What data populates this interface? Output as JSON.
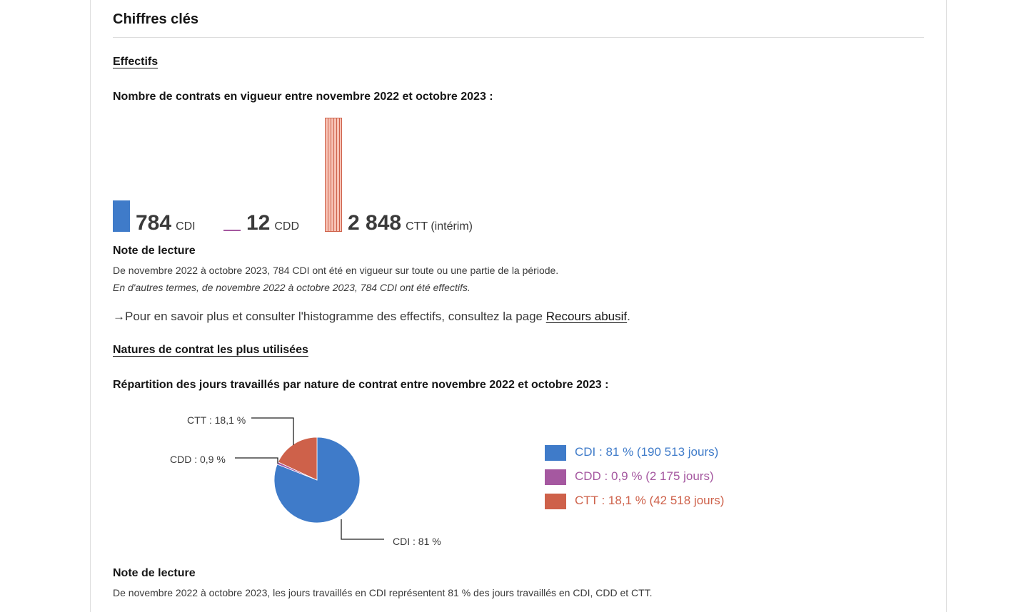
{
  "section": {
    "title": "Chiffres clés"
  },
  "effectifs": {
    "link_label": "Effectifs",
    "heading": "Nombre de contrats en vigueur entre novembre 2022 et octobre 2023 :",
    "figures": [
      {
        "value": "784",
        "label": "CDI",
        "raw": 784,
        "color": "#3f7bc9"
      },
      {
        "value": "12",
        "label": "CDD",
        "raw": 12,
        "color": "#a558a0"
      },
      {
        "value": "2 848",
        "label": "CTT (intérim)",
        "raw": 2848,
        "color": "#ce614a"
      }
    ],
    "note_title": "Note de lecture",
    "note_line1": "De novembre 2022 à octobre 2023, 784 CDI ont été en vigueur sur toute ou une partie de la période.",
    "note_line2": "En d'autres termes, de novembre 2022 à octobre 2023, 784 CDI ont été effectifs.",
    "more_prefix": "Pour en savoir plus et consulter l'histogramme des effectifs, consultez la page ",
    "more_link": "Recours abusif",
    "more_suffix": ".",
    "arrow_icon": "arrow-right-icon"
  },
  "natures": {
    "link_label": "Natures de contrat les plus utilisées",
    "heading": "Répartition des jours travaillés par nature de contrat entre novembre 2022 et octobre 2023 :",
    "pie_labels": {
      "cdi": "CDI : 81 %",
      "cdd": "CDD : 0,9 %",
      "ctt": "CTT : 18,1 %"
    },
    "legend": [
      {
        "label": "CDI : 81 % (190 513 jours)",
        "color": "#3f7bc9"
      },
      {
        "label": "CDD : 0,9 % (2 175 jours)",
        "color": "#a558a0"
      },
      {
        "label": "CTT : 18,1 % (42 518 jours)",
        "color": "#ce614a"
      }
    ],
    "note_title": "Note de lecture",
    "note_line1": "De novembre 2022 à octobre 2023, les jours travaillés en CDI représentent 81 % des jours travaillés en CDI, CDD et CTT."
  },
  "chart_data": [
    {
      "type": "bar",
      "categories": [
        "CDI",
        "CDD",
        "CTT (intérim)"
      ],
      "values": [
        784,
        12,
        2848
      ],
      "title": "Nombre de contrats en vigueur entre novembre 2022 et octobre 2023 :"
    },
    {
      "type": "pie",
      "categories": [
        "CDI",
        "CDD",
        "CTT"
      ],
      "values": [
        81,
        0.9,
        18.1
      ],
      "days": [
        190513,
        2175,
        42518
      ],
      "colors": [
        "#3f7bc9",
        "#a558a0",
        "#ce614a"
      ],
      "title": "Répartition des jours travaillés par nature de contrat entre novembre 2022 et octobre 2023 :",
      "legend_position": "right"
    }
  ]
}
